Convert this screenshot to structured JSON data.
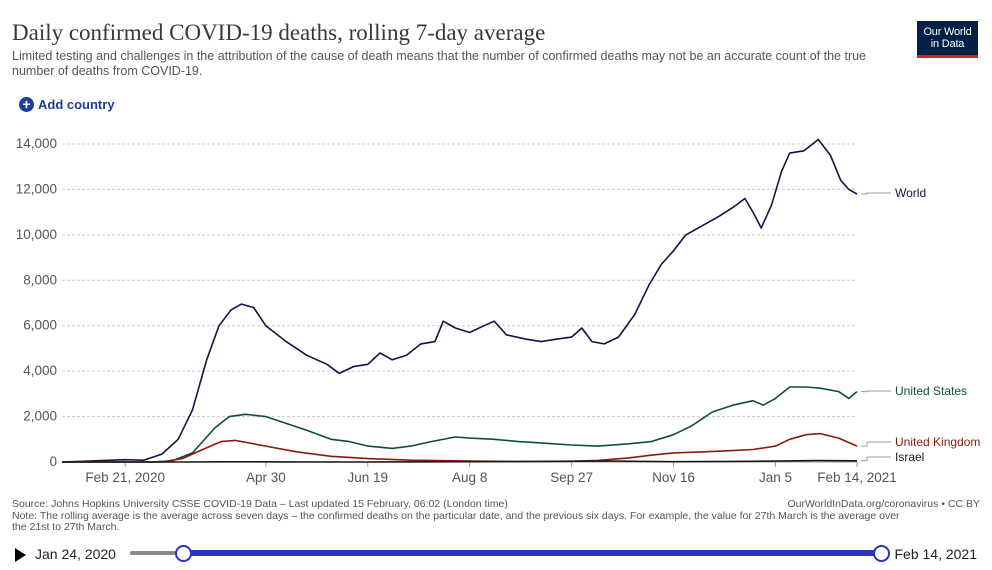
{
  "header": {
    "title": "Daily confirmed COVID-19 deaths, rolling 7-day average",
    "subtitle": "Limited testing and challenges in the attribution of the cause of death means that the number of confirmed deaths may not be an accurate count of the true number of deaths from COVID-19.",
    "logo_line1": "Our World",
    "logo_line2": "in Data",
    "add_country_label": "Add country"
  },
  "colors": {
    "World": "#1f0e44",
    "United States": "#0e4e3f",
    "United Kingdom": "#8b1a0d",
    "Israel": "#1a1a1a"
  },
  "chart_data": {
    "type": "line",
    "title": "Daily confirmed COVID-19 deaths, rolling 7-day average",
    "xlabel": "",
    "ylabel": "",
    "x_start": "2020-01-21",
    "x_end": "2021-02-14",
    "ylim": [
      0,
      14000
    ],
    "yticks": [
      0,
      2000,
      4000,
      6000,
      8000,
      10000,
      12000,
      14000
    ],
    "ytick_labels": [
      "0",
      "2,000",
      "4,000",
      "6,000",
      "8,000",
      "10,000",
      "12,000",
      "14,000"
    ],
    "xticks": [
      "2020-02-21",
      "2020-04-30",
      "2020-06-19",
      "2020-08-08",
      "2020-09-27",
      "2020-11-16",
      "2021-01-05",
      "2021-02-14"
    ],
    "xtick_labels": [
      "Feb 21, 2020",
      "Apr 30",
      "Jun 19",
      "Aug 8",
      "Sep 27",
      "Nov 16",
      "Jan 5",
      "Feb 14, 2021"
    ],
    "grid": true,
    "legend": "right, end of lines",
    "series": [
      {
        "name": "World",
        "points": [
          [
            "2020-01-21",
            0
          ],
          [
            "2020-02-21",
            100
          ],
          [
            "2020-03-01",
            80
          ],
          [
            "2020-03-10",
            350
          ],
          [
            "2020-03-18",
            1000
          ],
          [
            "2020-03-25",
            2300
          ],
          [
            "2020-04-01",
            4500
          ],
          [
            "2020-04-07",
            6000
          ],
          [
            "2020-04-13",
            6700
          ],
          [
            "2020-04-18",
            6950
          ],
          [
            "2020-04-24",
            6800
          ],
          [
            "2020-04-30",
            6000
          ],
          [
            "2020-05-10",
            5300
          ],
          [
            "2020-05-20",
            4700
          ],
          [
            "2020-05-30",
            4300
          ],
          [
            "2020-06-05",
            3900
          ],
          [
            "2020-06-12",
            4200
          ],
          [
            "2020-06-19",
            4300
          ],
          [
            "2020-06-25",
            4800
          ],
          [
            "2020-07-01",
            4500
          ],
          [
            "2020-07-08",
            4700
          ],
          [
            "2020-07-15",
            5200
          ],
          [
            "2020-07-22",
            5300
          ],
          [
            "2020-07-26",
            6200
          ],
          [
            "2020-08-01",
            5900
          ],
          [
            "2020-08-08",
            5700
          ],
          [
            "2020-08-15",
            6000
          ],
          [
            "2020-08-20",
            6200
          ],
          [
            "2020-08-26",
            5600
          ],
          [
            "2020-09-05",
            5400
          ],
          [
            "2020-09-12",
            5300
          ],
          [
            "2020-09-19",
            5400
          ],
          [
            "2020-09-27",
            5500
          ],
          [
            "2020-10-02",
            5900
          ],
          [
            "2020-10-07",
            5300
          ],
          [
            "2020-10-13",
            5200
          ],
          [
            "2020-10-20",
            5500
          ],
          [
            "2020-10-28",
            6500
          ],
          [
            "2020-11-04",
            7800
          ],
          [
            "2020-11-10",
            8700
          ],
          [
            "2020-11-16",
            9300
          ],
          [
            "2020-11-22",
            10000
          ],
          [
            "2020-11-30",
            10400
          ],
          [
            "2020-12-08",
            10800
          ],
          [
            "2020-12-15",
            11200
          ],
          [
            "2020-12-21",
            11600
          ],
          [
            "2020-12-25",
            11000
          ],
          [
            "2020-12-29",
            10300
          ],
          [
            "2021-01-03",
            11300
          ],
          [
            "2021-01-08",
            12800
          ],
          [
            "2021-01-12",
            13600
          ],
          [
            "2021-01-19",
            13700
          ],
          [
            "2021-01-26",
            14200
          ],
          [
            "2021-02-01",
            13500
          ],
          [
            "2021-02-06",
            12400
          ],
          [
            "2021-02-10",
            12000
          ],
          [
            "2021-02-14",
            11800
          ]
        ]
      },
      {
        "name": "United States",
        "points": [
          [
            "2020-01-21",
            0
          ],
          [
            "2020-02-21",
            0
          ],
          [
            "2020-03-05",
            5
          ],
          [
            "2020-03-15",
            50
          ],
          [
            "2020-03-25",
            400
          ],
          [
            "2020-04-05",
            1500
          ],
          [
            "2020-04-12",
            2000
          ],
          [
            "2020-04-20",
            2100
          ],
          [
            "2020-04-30",
            2000
          ],
          [
            "2020-05-10",
            1700
          ],
          [
            "2020-05-20",
            1400
          ],
          [
            "2020-06-01",
            1000
          ],
          [
            "2020-06-10",
            900
          ],
          [
            "2020-06-19",
            700
          ],
          [
            "2020-07-01",
            600
          ],
          [
            "2020-07-10",
            700
          ],
          [
            "2020-07-20",
            900
          ],
          [
            "2020-08-01",
            1100
          ],
          [
            "2020-08-08",
            1050
          ],
          [
            "2020-08-20",
            1000
          ],
          [
            "2020-09-01",
            900
          ],
          [
            "2020-09-10",
            850
          ],
          [
            "2020-09-27",
            750
          ],
          [
            "2020-10-10",
            700
          ],
          [
            "2020-10-25",
            800
          ],
          [
            "2020-11-05",
            900
          ],
          [
            "2020-11-16",
            1200
          ],
          [
            "2020-11-25",
            1600
          ],
          [
            "2020-12-05",
            2200
          ],
          [
            "2020-12-15",
            2500
          ],
          [
            "2020-12-25",
            2700
          ],
          [
            "2020-12-30",
            2500
          ],
          [
            "2021-01-05",
            2800
          ],
          [
            "2021-01-12",
            3300
          ],
          [
            "2021-01-20",
            3300
          ],
          [
            "2021-01-27",
            3250
          ],
          [
            "2021-02-05",
            3100
          ],
          [
            "2021-02-10",
            2800
          ],
          [
            "2021-02-14",
            3100
          ]
        ]
      },
      {
        "name": "United Kingdom",
        "points": [
          [
            "2020-01-21",
            0
          ],
          [
            "2020-02-21",
            0
          ],
          [
            "2020-03-10",
            5
          ],
          [
            "2020-03-20",
            150
          ],
          [
            "2020-03-30",
            550
          ],
          [
            "2020-04-08",
            900
          ],
          [
            "2020-04-15",
            950
          ],
          [
            "2020-04-30",
            700
          ],
          [
            "2020-05-15",
            450
          ],
          [
            "2020-06-01",
            250
          ],
          [
            "2020-06-19",
            150
          ],
          [
            "2020-07-10",
            80
          ],
          [
            "2020-08-08",
            40
          ],
          [
            "2020-09-01",
            20
          ],
          [
            "2020-09-27",
            30
          ],
          [
            "2020-10-10",
            70
          ],
          [
            "2020-10-25",
            180
          ],
          [
            "2020-11-05",
            300
          ],
          [
            "2020-11-16",
            400
          ],
          [
            "2020-12-01",
            450
          ],
          [
            "2020-12-15",
            500
          ],
          [
            "2020-12-25",
            550
          ],
          [
            "2021-01-05",
            700
          ],
          [
            "2021-01-12",
            1000
          ],
          [
            "2021-01-20",
            1200
          ],
          [
            "2021-01-27",
            1250
          ],
          [
            "2021-02-05",
            1050
          ],
          [
            "2021-02-14",
            700
          ]
        ]
      },
      {
        "name": "Israel",
        "points": [
          [
            "2020-01-21",
            0
          ],
          [
            "2020-03-20",
            0
          ],
          [
            "2020-04-10",
            10
          ],
          [
            "2020-05-10",
            5
          ],
          [
            "2020-06-19",
            2
          ],
          [
            "2020-07-20",
            10
          ],
          [
            "2020-08-08",
            15
          ],
          [
            "2020-09-10",
            25
          ],
          [
            "2020-09-27",
            35
          ],
          [
            "2020-10-15",
            40
          ],
          [
            "2020-11-16",
            15
          ],
          [
            "2020-12-15",
            25
          ],
          [
            "2021-01-05",
            40
          ],
          [
            "2021-01-25",
            60
          ],
          [
            "2021-02-14",
            55
          ]
        ]
      }
    ]
  },
  "footer": {
    "source": "Source: Johns Hopkins University CSSE COVID-19 Data – Last updated 15 February, 06:02 (London time)",
    "note_line1": "Note: The rolling average is the average across seven days – the confirmed deaths on the particular date, and the previous six days. For example, the value for 27th March is the average over",
    "note_line2": "the 21st to 27th March.",
    "credit": "OurWorldInData.org/coronavirus • CC BY"
  },
  "timeline": {
    "start_label": "Jan 24, 2020",
    "end_label": "Feb 14, 2021"
  }
}
